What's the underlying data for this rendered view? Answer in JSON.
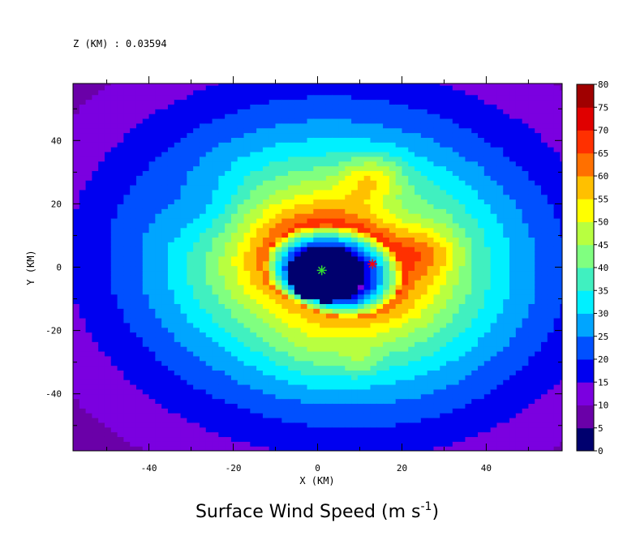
{
  "chart_data": {
    "type": "heatmap",
    "level_label": "Z (KM) : 0.03594",
    "title": "Surface Wind Speed (m s",
    "title_superscript": "-1",
    "title_suffix": ")",
    "xlabel": "X (KM)",
    "ylabel": "Y (KM)",
    "xlim": [
      -58,
      58
    ],
    "ylim": [
      -58,
      58
    ],
    "x_ticks": [
      -40,
      -20,
      0,
      20,
      40
    ],
    "y_ticks": [
      -40,
      -20,
      0,
      20,
      40
    ],
    "x_ticks_minor": [
      -50,
      -30,
      -10,
      10,
      30,
      50
    ],
    "y_ticks_minor": [
      -50,
      -30,
      -10,
      10,
      30,
      50
    ],
    "colorbar": {
      "levels": [
        0,
        5,
        10,
        15,
        20,
        25,
        30,
        35,
        40,
        45,
        50,
        55,
        60,
        65,
        70,
        75,
        80
      ],
      "colors": [
        "#00006e",
        "#6a00a8",
        "#7b00e0",
        "#0000f0",
        "#0050ff",
        "#00a5ff",
        "#00f0ff",
        "#40f0c0",
        "#80ff80",
        "#b8ff40",
        "#ffff00",
        "#ffc000",
        "#ff7000",
        "#ff3000",
        "#e00000",
        "#a00000"
      ]
    },
    "center_markers": [
      {
        "name": "storm center",
        "x": 1.0,
        "y": -1.0,
        "symbol": "asterisk",
        "color": "#33dd33"
      },
      {
        "name": "maximum",
        "x": 13.0,
        "y": 1.0,
        "symbol": "asterisk",
        "color": "#ff0000"
      }
    ]
  }
}
